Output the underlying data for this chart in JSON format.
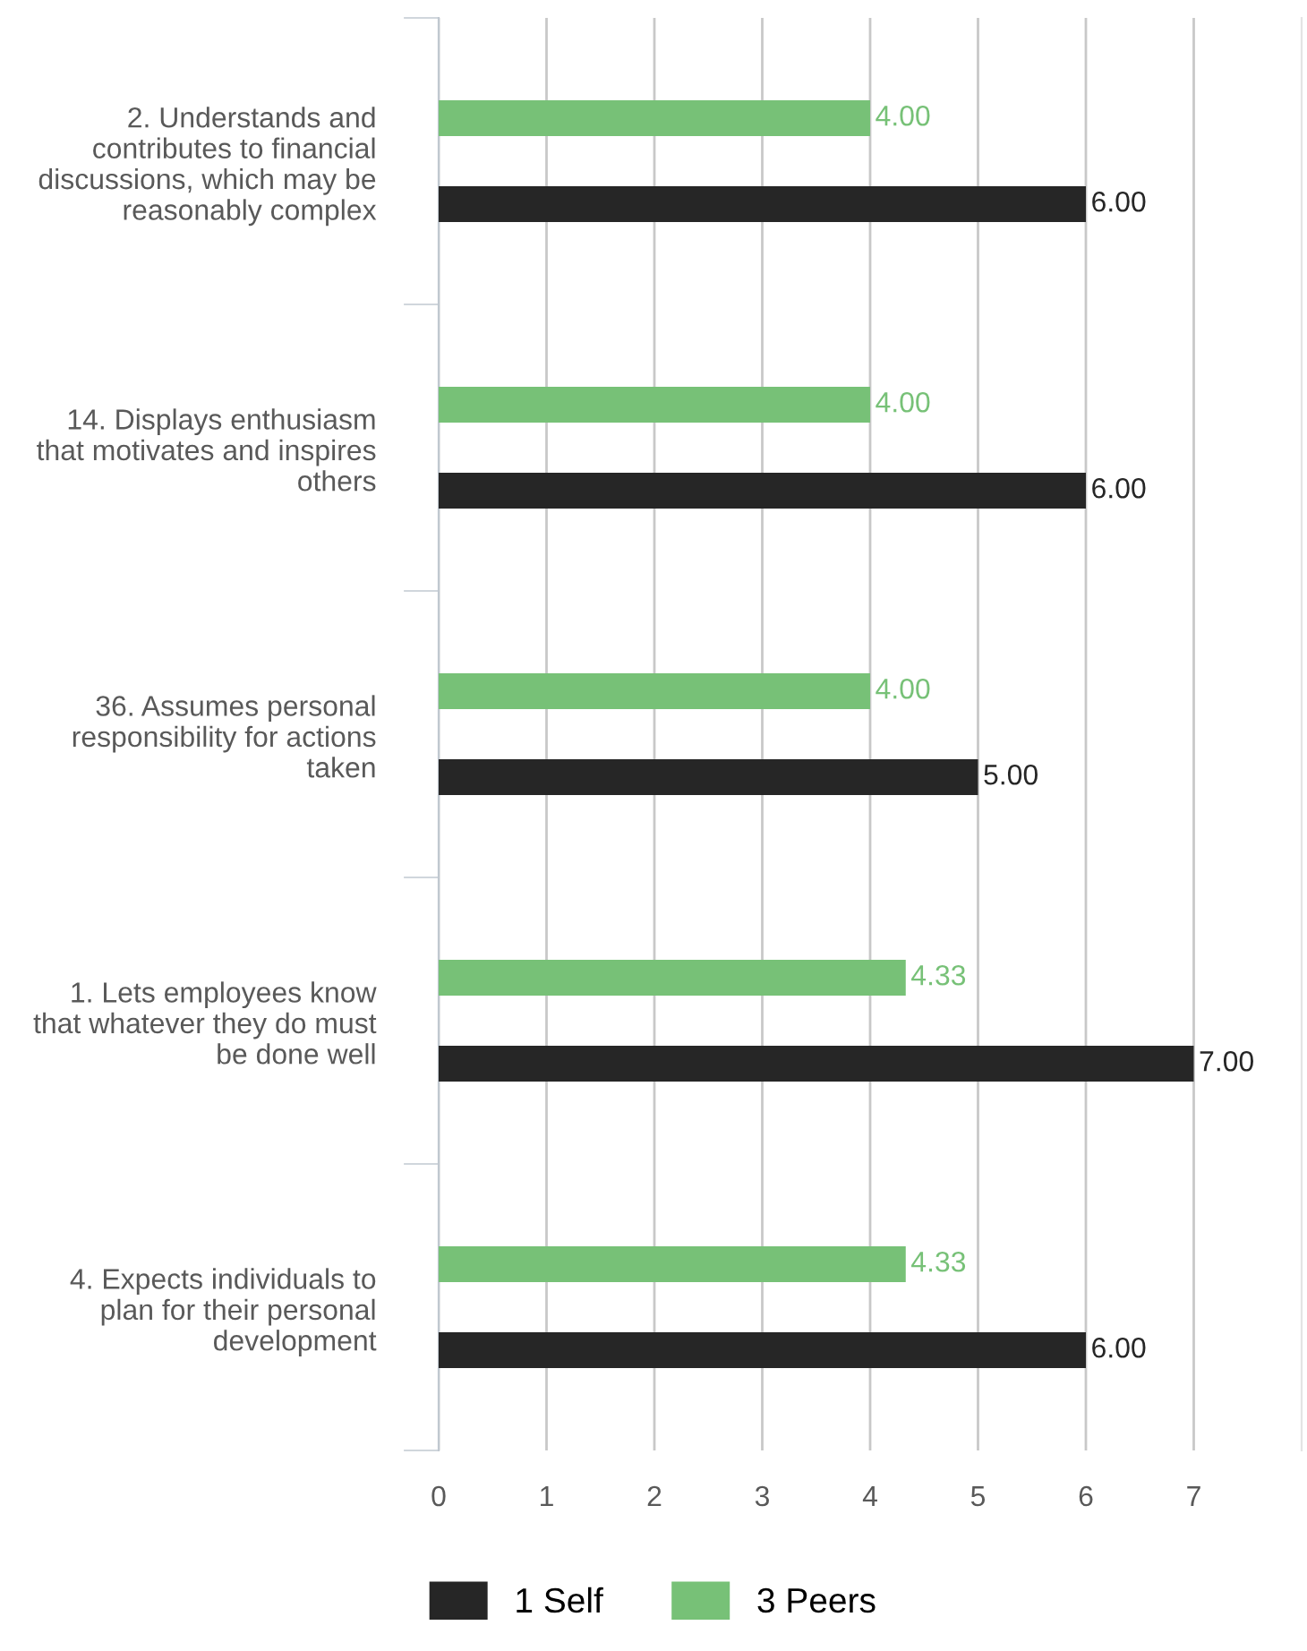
{
  "chart_data": {
    "type": "bar",
    "orientation": "horizontal",
    "categories": [
      "2. Understands and\ncontributes to financial\ndiscussions, which may be\nreasonably complex",
      "14. Displays enthusiasm\nthat motivates and inspires\nothers",
      "36. Assumes personal\nresponsibility for actions\ntaken",
      "1. Lets employees know\nthat whatever they do must\nbe done well",
      "4. Expects individuals to\nplan for their personal\ndevelopment"
    ],
    "series": [
      {
        "name": "1 Self",
        "color": "#262626",
        "values": [
          6,
          6,
          5,
          7,
          6
        ],
        "value_labels": [
          "6.00",
          "6.00",
          "5.00",
          "7.00",
          "6.00"
        ]
      },
      {
        "name": "3 Peers",
        "color": "#77c177",
        "values": [
          4,
          4,
          4,
          4.33,
          4.33
        ],
        "value_labels": [
          "4.00",
          "4.00",
          "4.00",
          "4.33",
          "4.33"
        ]
      }
    ],
    "xlim": [
      0,
      8
    ],
    "xticks": [
      0,
      1,
      2,
      3,
      4,
      5,
      6,
      7
    ],
    "grid": "x",
    "legend": "bottom"
  }
}
